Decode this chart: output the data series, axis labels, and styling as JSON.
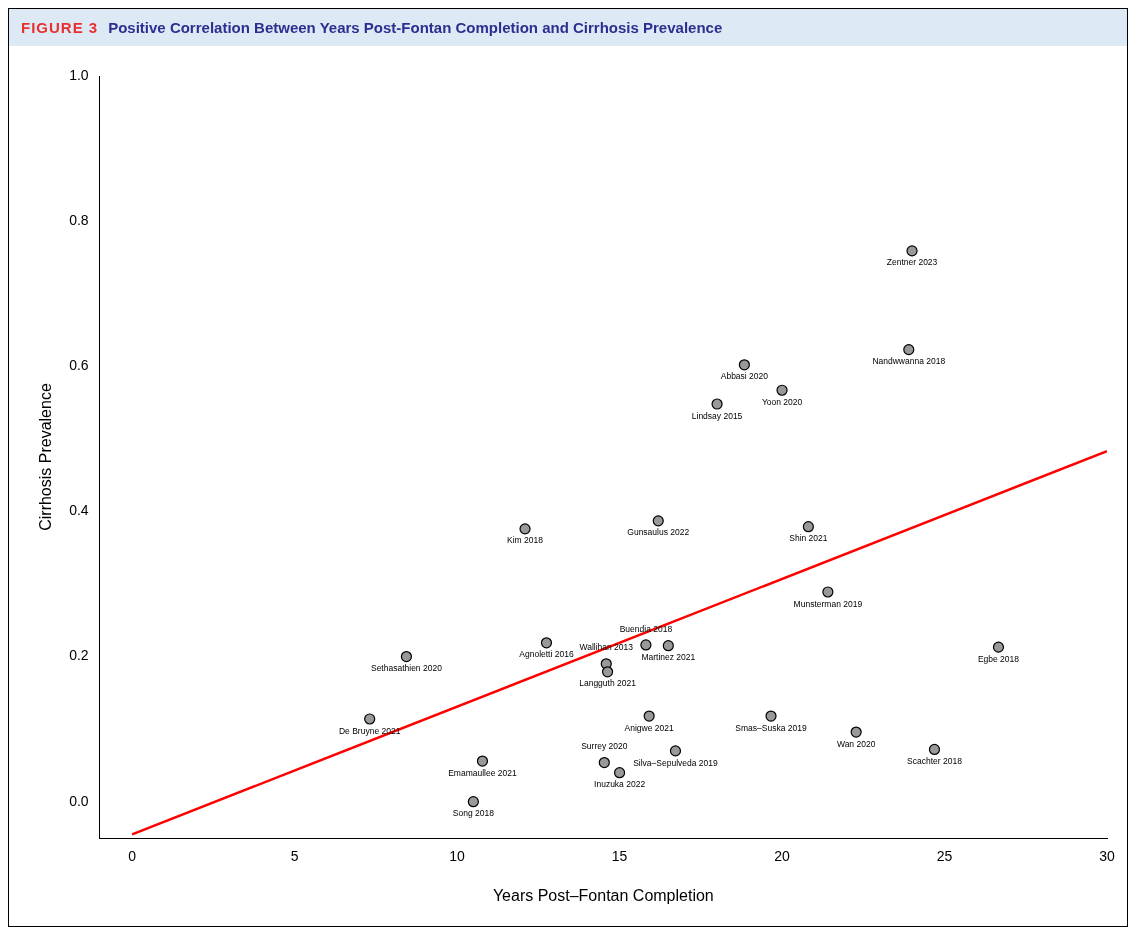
{
  "chart_data": {
    "type": "scatter",
    "title": "Positive Correlation Between Years Post-Fontan Completion and Cirrhosis Prevalence",
    "annotations": [
      "FIGURE 3"
    ],
    "xlabel": "Years Post–Fontan Completion",
    "ylabel": "Cirrhosis Prevalence",
    "xlim": [
      -1,
      30
    ],
    "ylim": [
      -0.05,
      1.0
    ],
    "xticks": [
      0,
      5,
      10,
      15,
      20,
      25,
      30
    ],
    "yticks": [
      {
        "value": 0,
        "label": "0.0"
      },
      0.2,
      0.4,
      0.6,
      0.8,
      {
        "value": 1,
        "label": "1.0"
      }
    ],
    "series": [
      {
        "color": "#999999",
        "x": [
          24.0,
          23.9,
          18.84,
          20.0,
          18.0,
          16.19,
          12.09,
          20.81,
          21.41,
          12.75,
          15.81,
          16.5,
          26.66,
          8.44,
          14.59,
          14.63,
          7.31,
          15.91,
          19.66,
          22.28,
          16.72,
          24.69,
          10.78,
          14.53,
          15.0,
          10.5
        ],
        "values": [
          0.759,
          0.623,
          0.602,
          0.567,
          0.548,
          0.387,
          0.376,
          0.379,
          0.289,
          0.219,
          0.216,
          0.215,
          0.213,
          0.2,
          0.19,
          0.179,
          0.114,
          0.118,
          0.118,
          0.096,
          0.07,
          0.072,
          0.056,
          0.054,
          0.04,
          0.0
        ],
        "value_labels": [
          "Zentner 2023",
          "Nandwwanna 2018",
          "Abbasi 2020",
          "Yoon 2020",
          "Lindsay 2015",
          "Gunsaulus 2022",
          "Kim 2018",
          "Shin 2021",
          "Munsterman 2019",
          "Agnoletti 2016",
          "Buendia 2018",
          "Martinez 2021",
          "Egbe 2018",
          "Sethasathien 2020",
          "Wallihan 2013",
          "Langguth 2021",
          "De Bruyne 2021",
          "Anigwe 2021",
          "Smas–Suska 2019",
          "Wan 2020",
          "Silva–Sepulveda 2019",
          "Scachter 2018",
          "Emamaullee 2021",
          "Surrey 2020",
          "Inuzuka 2022",
          "Song 2018"
        ]
      },
      {
        "type": "line",
        "color": "#ff0000",
        "x": [
          0,
          30
        ],
        "values": [
          -0.045,
          0.483
        ]
      }
    ]
  }
}
